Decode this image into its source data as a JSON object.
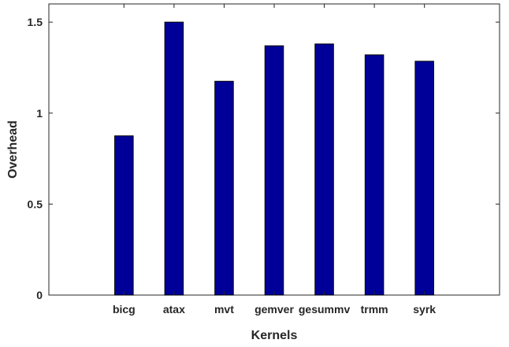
{
  "chart_data": {
    "type": "bar",
    "title": "",
    "xlabel": "Kernels",
    "ylabel": "Overhead",
    "categories": [
      "bicg",
      "atax",
      "mvt",
      "gemver",
      "gesummv",
      "trmm",
      "syrk"
    ],
    "values": [
      0.875,
      1.5,
      1.175,
      1.37,
      1.38,
      1.32,
      1.285
    ],
    "ylim": [
      0,
      1.6
    ],
    "yticks": [
      0,
      0.5,
      1,
      1.5
    ],
    "ytick_labels": [
      "0",
      "0.5",
      "1",
      "1.5"
    ],
    "grid": false,
    "bar_color": "#000099",
    "bar_edge_color": "#000000"
  }
}
